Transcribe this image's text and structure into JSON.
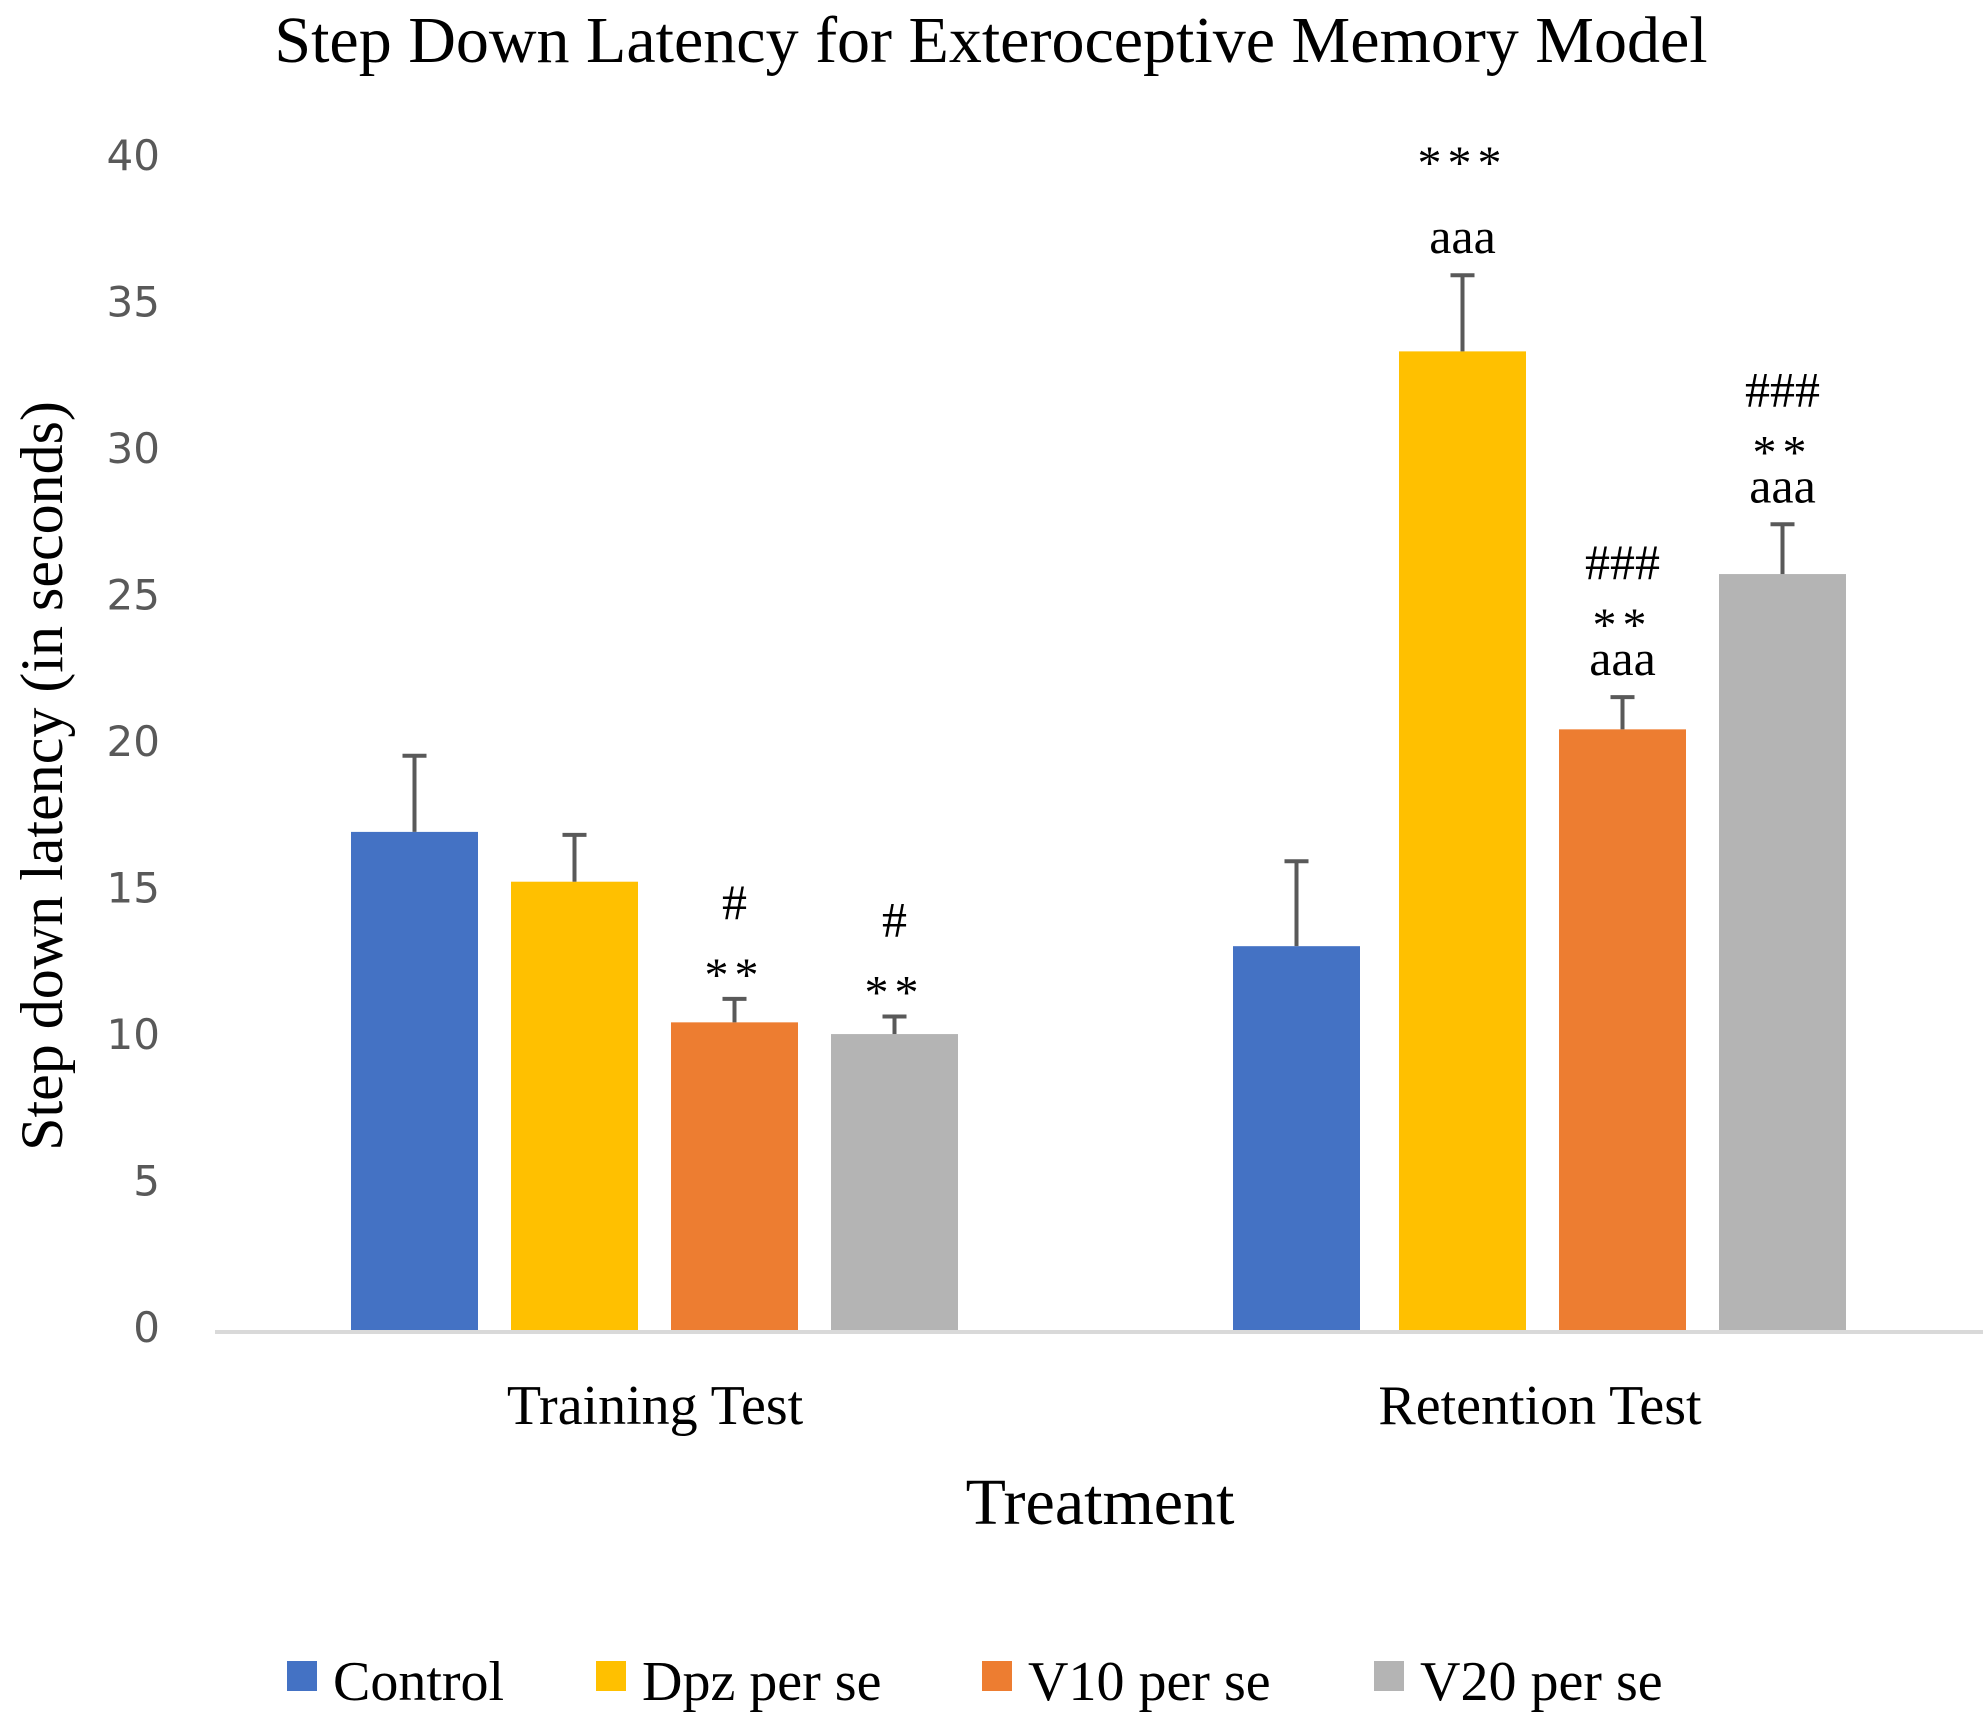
{
  "chart_data": {
    "type": "bar",
    "title": "Step Down Latency for Exteroceptive Memory Model",
    "xlabel": "Treatment",
    "ylabel": "Step down latency (in seconds)",
    "ylim": [
      0,
      40
    ],
    "yticks": [
      "0",
      "5",
      "10",
      "15",
      "20",
      "25",
      "30",
      "35",
      "40"
    ],
    "categories": [
      "Training Test",
      "Retention Test"
    ],
    "series": [
      {
        "name": "Control",
        "color": "#4472C4",
        "values": [
          17.0,
          13.1
        ],
        "errors": [
          2.6,
          2.9
        ],
        "annotations": [
          [],
          []
        ]
      },
      {
        "name": "Dpz per se",
        "color": "#FFC000",
        "values": [
          15.3,
          33.4
        ],
        "errors": [
          1.6,
          2.6
        ],
        "annotations": [
          [],
          [
            "***",
            "aaa"
          ]
        ]
      },
      {
        "name": "V10 per se",
        "color": "#ED7D31",
        "values": [
          10.5,
          20.5
        ],
        "errors": [
          0.8,
          1.1
        ],
        "annotations": [
          [
            "#",
            "**"
          ],
          [
            "###",
            "**",
            "aaa"
          ]
        ]
      },
      {
        "name": "V20 per se",
        "color": "#B4B4B4",
        "values": [
          10.1,
          25.8
        ],
        "errors": [
          0.6,
          1.7
        ],
        "annotations": [
          [
            "#",
            "**"
          ],
          [
            "###",
            "**",
            "aaa"
          ]
        ]
      }
    ],
    "legend_position": "bottom",
    "grid": false
  }
}
